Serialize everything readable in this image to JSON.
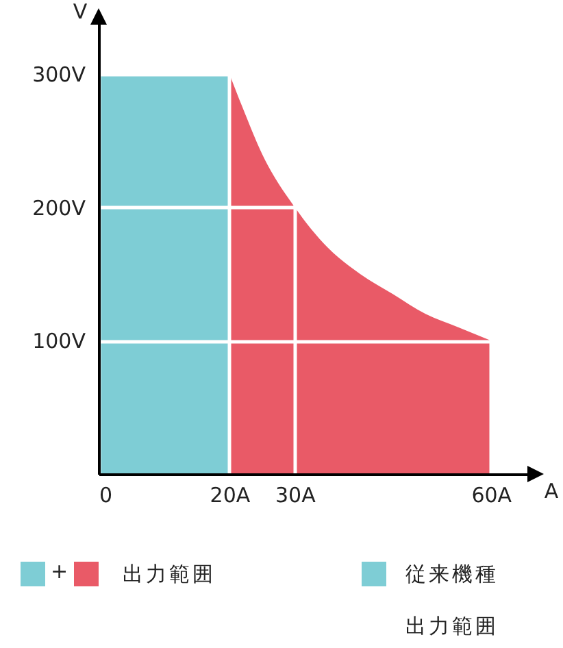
{
  "chart_data": {
    "type": "area",
    "xlabel": "A",
    "ylabel": "V",
    "xlim": [
      0,
      66
    ],
    "ylim": [
      0,
      340
    ],
    "xticks": [
      {
        "value": 0,
        "label": "0"
      },
      {
        "value": 20,
        "label": "20A"
      },
      {
        "value": 30,
        "label": "30A"
      },
      {
        "value": 60,
        "label": "60A"
      }
    ],
    "yticks": [
      {
        "value": 100,
        "label": "100V"
      },
      {
        "value": 200,
        "label": "200V"
      },
      {
        "value": 300,
        "label": "300V"
      }
    ],
    "grid": true,
    "legend": "bottom",
    "annotations": [
      "+"
    ],
    "series": [
      {
        "name": "出力範囲",
        "color": "#e95a67",
        "x": [
          20,
          22,
          25,
          30,
          35,
          40,
          45,
          50,
          55,
          60
        ],
        "values": [
          300,
          275,
          240,
          200,
          170,
          150,
          135,
          120,
          110,
          100
        ]
      },
      {
        "name": "従来機種出力範囲",
        "color": "#7ecdd5",
        "x": [
          0,
          20
        ],
        "values": [
          300,
          300
        ]
      }
    ]
  }
}
